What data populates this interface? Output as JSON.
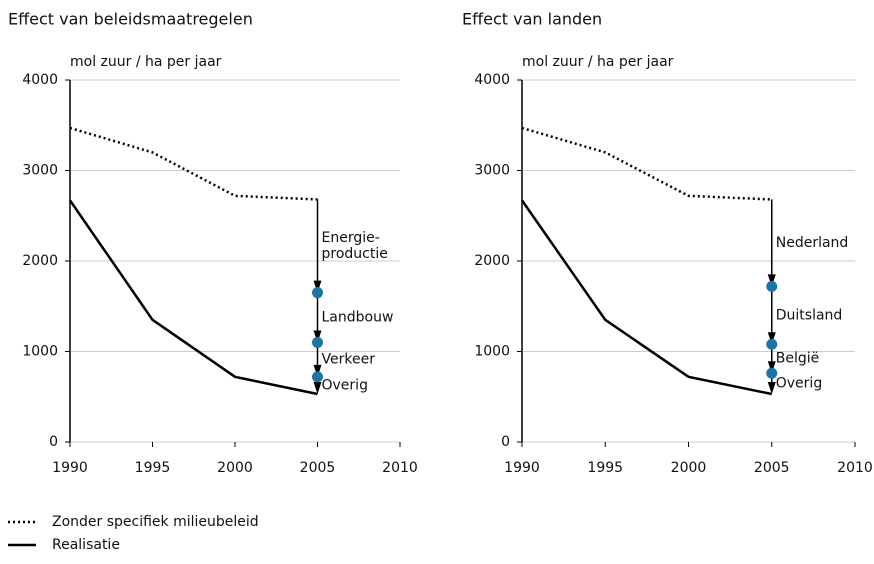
{
  "chart_data": [
    {
      "type": "line",
      "title": "Effect van beleidsmaatregelen",
      "ylabel": "mol zuur / ha per jaar",
      "x": [
        1990,
        1995,
        2000,
        2005
      ],
      "series": [
        {
          "style": "dotted",
          "color": "#000000",
          "values": [
            3470,
            3200,
            2720,
            2680
          ]
        },
        {
          "style": "solid",
          "color": "#000000",
          "values": [
            2670,
            1350,
            720,
            530
          ]
        }
      ],
      "points": {
        "color": "#1b75a8",
        "values": [
          1650,
          1100,
          720
        ]
      },
      "arrow_labels": [
        [
          "Energie-",
          "productie"
        ],
        [
          "Landbouw"
        ],
        [
          "Verkeer"
        ],
        [
          "Overig"
        ]
      ],
      "xlim": [
        1990,
        2010
      ],
      "xticks": [
        1990,
        1995,
        2000,
        2005,
        2010
      ],
      "ylim": [
        0,
        4000
      ],
      "yticks": [
        0,
        1000,
        2000,
        3000,
        4000
      ],
      "grid": true
    },
    {
      "type": "line",
      "title": "Effect van landen",
      "ylabel": "mol zuur / ha per jaar",
      "x": [
        1990,
        1995,
        2000,
        2005
      ],
      "series": [
        {
          "style": "dotted",
          "color": "#000000",
          "values": [
            3470,
            3200,
            2720,
            2680
          ]
        },
        {
          "style": "solid",
          "color": "#000000",
          "values": [
            2670,
            1350,
            720,
            530
          ]
        }
      ],
      "points": {
        "color": "#1b75a8",
        "values": [
          1720,
          1080,
          760
        ]
      },
      "arrow_labels": [
        [
          "Nederland"
        ],
        [
          "Duitsland"
        ],
        [
          "België"
        ],
        [
          "Overig"
        ]
      ],
      "xlim": [
        1990,
        2010
      ],
      "xticks": [
        1990,
        1995,
        2000,
        2005,
        2010
      ],
      "ylim": [
        0,
        4000
      ],
      "yticks": [
        0,
        1000,
        2000,
        3000,
        4000
      ],
      "grid": true
    }
  ],
  "legend": [
    {
      "name": "Zonder specifiek milieubeleid",
      "style": "dotted"
    },
    {
      "name": "Realisatie",
      "style": "solid"
    }
  ]
}
